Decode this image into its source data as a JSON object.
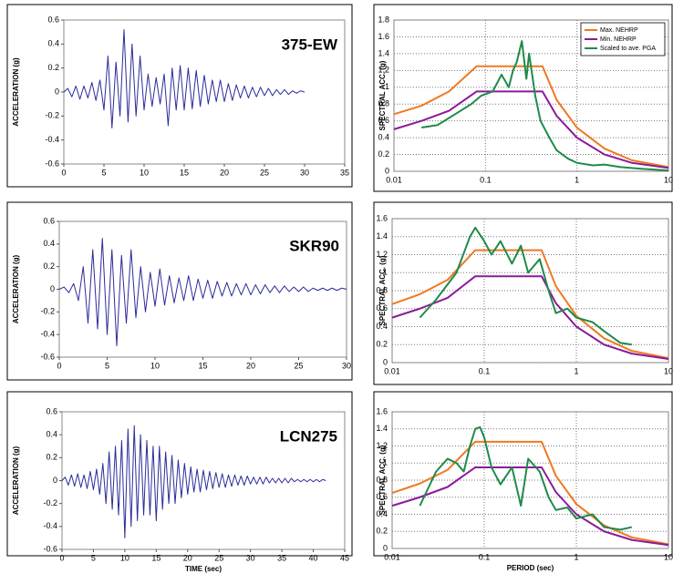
{
  "chart_data": [
    {
      "type": "line",
      "title": "375-EW",
      "ylabel": "ACCELERATION (g)",
      "xlim": [
        0,
        35
      ],
      "xticks": [
        0,
        5,
        10,
        15,
        20,
        25,
        30,
        35
      ],
      "ylim": [
        -0.6,
        0.6
      ],
      "yticks": [
        -0.6,
        -0.4,
        -0.2,
        0,
        0.2,
        0.4,
        0.6
      ],
      "grid": false,
      "series": [
        {
          "color": "#2b2b9a",
          "x": [
            0,
            0.5,
            1,
            1.5,
            2,
            2.5,
            3,
            3.5,
            4,
            4.5,
            5,
            5.5,
            6,
            6.5,
            7,
            7.5,
            8,
            8.5,
            9,
            9.5,
            10,
            10.5,
            11,
            11.5,
            12,
            12.5,
            13,
            13.5,
            14,
            14.5,
            15,
            15.5,
            16,
            16.5,
            17,
            17.5,
            18,
            18.5,
            19,
            19.5,
            20,
            20.5,
            21,
            21.5,
            22,
            22.5,
            23,
            23.5,
            24,
            24.5,
            25,
            25.5,
            26,
            26.5,
            27,
            27.5,
            28,
            28.5,
            29,
            29.5,
            30
          ],
          "values": [
            0,
            0.03,
            -0.04,
            0.05,
            -0.06,
            0.05,
            -0.05,
            0.08,
            -0.07,
            0.1,
            -0.15,
            0.3,
            -0.3,
            0.25,
            -0.2,
            0.52,
            -0.25,
            0.4,
            -0.2,
            0.3,
            -0.15,
            0.15,
            -0.12,
            0.12,
            -0.1,
            0.15,
            -0.28,
            0.2,
            -0.15,
            0.22,
            -0.15,
            0.2,
            -0.14,
            0.18,
            -0.12,
            0.14,
            -0.1,
            0.1,
            -0.08,
            0.1,
            -0.08,
            0.07,
            -0.07,
            0.06,
            -0.05,
            0.05,
            -0.05,
            0.04,
            -0.04,
            0.04,
            -0.03,
            0.03,
            -0.03,
            0.02,
            -0.02,
            0.02,
            -0.02,
            0.01,
            -0.01,
            0.01,
            0
          ]
        }
      ]
    },
    {
      "type": "line",
      "ylabel": "SPECTRAL ACC. (g)",
      "xlog": true,
      "xlim": [
        0.01,
        10
      ],
      "xticks": [
        0.01,
        0.1,
        1,
        10
      ],
      "ylim": [
        0,
        1.8
      ],
      "yticks": [
        0,
        0.2,
        0.4,
        0.6,
        0.8,
        1,
        1.2,
        1.4,
        1.6,
        1.8
      ],
      "grid": true,
      "legend": "upper right",
      "series": [
        {
          "name": "Max. NEHRP",
          "color": "#f07820",
          "x": [
            0.01,
            0.02,
            0.04,
            0.08,
            0.42,
            0.6,
            1,
            2,
            4,
            10
          ],
          "values": [
            0.68,
            0.78,
            0.95,
            1.25,
            1.25,
            0.85,
            0.52,
            0.27,
            0.13,
            0.05
          ]
        },
        {
          "name": "Min. NEHRP",
          "color": "#8a1a9a",
          "x": [
            0.01,
            0.02,
            0.04,
            0.08,
            0.42,
            0.6,
            1,
            2,
            4,
            10
          ],
          "values": [
            0.5,
            0.6,
            0.72,
            0.95,
            0.95,
            0.66,
            0.4,
            0.2,
            0.1,
            0.04
          ]
        },
        {
          "name": "Scaled to ave. PGA",
          "color": "#1f8a4a",
          "x": [
            0.02,
            0.03,
            0.05,
            0.07,
            0.09,
            0.12,
            0.15,
            0.18,
            0.2,
            0.22,
            0.25,
            0.28,
            0.3,
            0.35,
            0.4,
            0.5,
            0.6,
            0.8,
            1,
            1.5,
            2,
            3,
            5,
            10
          ],
          "values": [
            0.52,
            0.55,
            0.7,
            0.8,
            0.9,
            0.95,
            1.15,
            1.0,
            1.2,
            1.3,
            1.55,
            1.1,
            1.4,
            0.9,
            0.6,
            0.4,
            0.25,
            0.15,
            0.1,
            0.07,
            0.08,
            0.05,
            0.03,
            0.01
          ]
        }
      ]
    },
    {
      "type": "line",
      "title": "SKR90",
      "ylabel": "ACCELERATION (g)",
      "xlim": [
        0,
        30
      ],
      "xticks": [
        0,
        5,
        10,
        15,
        20,
        25,
        30
      ],
      "ylim": [
        -0.6,
        0.6
      ],
      "yticks": [
        -0.6,
        -0.4,
        -0.2,
        0,
        0.2,
        0.4,
        0.6
      ],
      "grid": false,
      "series": [
        {
          "color": "#2b2b9a",
          "x": [
            0,
            0.5,
            1,
            1.5,
            2,
            2.5,
            3,
            3.5,
            4,
            4.5,
            5,
            5.5,
            6,
            6.5,
            7,
            7.5,
            8,
            8.5,
            9,
            9.5,
            10,
            10.5,
            11,
            11.5,
            12,
            12.5,
            13,
            13.5,
            14,
            14.5,
            15,
            15.5,
            16,
            16.5,
            17,
            17.5,
            18,
            18.5,
            19,
            19.5,
            20,
            20.5,
            21,
            21.5,
            22,
            22.5,
            23,
            23.5,
            24,
            24.5,
            25,
            25.5,
            26,
            26.5,
            27,
            27.5,
            28,
            28.5,
            29,
            29.5,
            30
          ],
          "values": [
            0,
            0.02,
            -0.03,
            0.05,
            -0.1,
            0.2,
            -0.3,
            0.35,
            -0.35,
            0.45,
            -0.4,
            0.35,
            -0.5,
            0.3,
            -0.3,
            0.35,
            -0.25,
            0.2,
            -0.2,
            0.15,
            -0.15,
            0.18,
            -0.14,
            0.12,
            -0.12,
            0.1,
            -0.1,
            0.12,
            -0.1,
            0.09,
            -0.08,
            0.08,
            -0.08,
            0.07,
            -0.06,
            0.06,
            -0.06,
            0.05,
            -0.05,
            0.05,
            -0.05,
            0.04,
            -0.04,
            0.04,
            -0.03,
            0.03,
            -0.03,
            0.03,
            -0.02,
            0.02,
            -0.02,
            0.02,
            -0.02,
            0.01,
            -0.01,
            0.01,
            -0.01,
            0.01,
            -0.01,
            0.01,
            0
          ]
        }
      ]
    },
    {
      "type": "line",
      "ylabel": "SPECTRAL ACC. (g)",
      "xlog": true,
      "xlim": [
        0.01,
        10
      ],
      "xticks": [
        0.01,
        0.1,
        1,
        10
      ],
      "ylim": [
        0,
        1.6
      ],
      "yticks": [
        0,
        0.2,
        0.4,
        0.6,
        0.8,
        1,
        1.2,
        1.4,
        1.6
      ],
      "grid": true,
      "series": [
        {
          "color": "#f07820",
          "x": [
            0.01,
            0.02,
            0.04,
            0.08,
            0.42,
            0.6,
            1,
            2,
            4,
            10
          ],
          "values": [
            0.65,
            0.76,
            0.92,
            1.25,
            1.25,
            0.85,
            0.52,
            0.27,
            0.13,
            0.05
          ]
        },
        {
          "color": "#8a1a9a",
          "x": [
            0.01,
            0.02,
            0.04,
            0.08,
            0.42,
            0.6,
            1,
            2,
            4,
            10
          ],
          "values": [
            0.5,
            0.6,
            0.72,
            0.96,
            0.96,
            0.66,
            0.4,
            0.2,
            0.1,
            0.04
          ]
        },
        {
          "color": "#1f8a4a",
          "x": [
            0.02,
            0.03,
            0.05,
            0.07,
            0.08,
            0.1,
            0.12,
            0.15,
            0.2,
            0.25,
            0.3,
            0.4,
            0.5,
            0.6,
            0.8,
            1,
            1.5,
            2,
            3,
            4
          ],
          "values": [
            0.5,
            0.7,
            1.0,
            1.4,
            1.5,
            1.35,
            1.2,
            1.35,
            1.1,
            1.3,
            1.0,
            1.15,
            0.8,
            0.55,
            0.6,
            0.5,
            0.45,
            0.35,
            0.22,
            0.2
          ]
        }
      ]
    },
    {
      "type": "line",
      "title": "LCN275",
      "ylabel": "ACCELERATION (g)",
      "xlabel": "TIME (sec)",
      "xlim": [
        0,
        45
      ],
      "xticks": [
        0,
        5,
        10,
        15,
        20,
        25,
        30,
        35,
        40,
        45
      ],
      "ylim": [
        -0.6,
        0.6
      ],
      "yticks": [
        -0.6,
        -0.4,
        -0.2,
        0,
        0.2,
        0.4,
        0.6
      ],
      "grid": false,
      "series": [
        {
          "color": "#2b2b9a",
          "x": [
            0,
            0.5,
            1,
            1.5,
            2,
            2.5,
            3,
            3.5,
            4,
            4.5,
            5,
            5.5,
            6,
            6.5,
            7,
            7.5,
            8,
            8.5,
            9,
            9.5,
            10,
            10.5,
            11,
            11.5,
            12,
            12.5,
            13,
            13.5,
            14,
            14.5,
            15,
            15.5,
            16,
            16.5,
            17,
            17.5,
            18,
            18.5,
            19,
            19.5,
            20,
            20.5,
            21,
            21.5,
            22,
            22.5,
            23,
            23.5,
            24,
            24.5,
            25,
            25.5,
            26,
            26.5,
            27,
            27.5,
            28,
            28.5,
            29,
            29.5,
            30,
            30.5,
            31,
            31.5,
            32,
            32.5,
            33,
            33.5,
            34,
            34.5,
            35,
            35.5,
            36,
            36.5,
            37,
            37.5,
            38,
            38.5,
            39,
            39.5,
            40,
            40.5,
            41,
            41.5,
            42
          ],
          "values": [
            0,
            0.03,
            -0.04,
            0.05,
            -0.05,
            0.06,
            -0.06,
            0.05,
            -0.07,
            0.08,
            -0.08,
            0.1,
            -0.12,
            0.15,
            -0.2,
            0.25,
            -0.25,
            0.3,
            -0.3,
            0.35,
            -0.5,
            0.45,
            -0.4,
            0.48,
            -0.35,
            0.4,
            -0.3,
            0.35,
            -0.3,
            0.3,
            -0.35,
            0.3,
            -0.25,
            0.25,
            -0.2,
            0.22,
            -0.2,
            0.18,
            -0.15,
            0.15,
            -0.12,
            0.12,
            -0.1,
            0.1,
            -0.1,
            0.09,
            -0.08,
            0.08,
            -0.07,
            0.07,
            -0.06,
            0.06,
            -0.06,
            0.05,
            -0.05,
            0.05,
            -0.04,
            0.04,
            -0.04,
            0.04,
            -0.03,
            0.03,
            -0.03,
            0.03,
            -0.03,
            0.03,
            -0.02,
            0.02,
            -0.02,
            0.02,
            -0.02,
            0.02,
            -0.02,
            0.02,
            -0.01,
            0.01,
            -0.01,
            0.01,
            -0.01,
            0.01,
            -0.01,
            0.01,
            -0.01,
            0.01,
            0
          ]
        }
      ]
    },
    {
      "type": "line",
      "ylabel": "SPECTRAL ACC. (g)",
      "xlabel": "PERIOD (sec)",
      "xlog": true,
      "xlim": [
        0.01,
        10
      ],
      "xticks": [
        0.01,
        0.1,
        1,
        10
      ],
      "ylim": [
        0,
        1.6
      ],
      "yticks": [
        0,
        0.2,
        0.4,
        0.6,
        0.8,
        1,
        1.2,
        1.4,
        1.6
      ],
      "grid": true,
      "series": [
        {
          "color": "#f07820",
          "x": [
            0.01,
            0.02,
            0.04,
            0.08,
            0.42,
            0.6,
            1,
            2,
            4,
            10
          ],
          "values": [
            0.65,
            0.76,
            0.92,
            1.25,
            1.25,
            0.85,
            0.52,
            0.27,
            0.13,
            0.05
          ]
        },
        {
          "color": "#8a1a9a",
          "x": [
            0.01,
            0.02,
            0.04,
            0.08,
            0.42,
            0.6,
            1,
            2,
            4,
            10
          ],
          "values": [
            0.5,
            0.6,
            0.72,
            0.95,
            0.95,
            0.66,
            0.4,
            0.2,
            0.1,
            0.04
          ]
        },
        {
          "color": "#1f8a4a",
          "x": [
            0.02,
            0.03,
            0.04,
            0.05,
            0.06,
            0.07,
            0.08,
            0.09,
            0.1,
            0.12,
            0.15,
            0.2,
            0.25,
            0.3,
            0.4,
            0.5,
            0.6,
            0.8,
            1,
            1.5,
            2,
            3,
            4
          ],
          "values": [
            0.5,
            0.9,
            1.05,
            1.0,
            0.9,
            1.2,
            1.4,
            1.42,
            1.3,
            0.95,
            0.75,
            0.95,
            0.5,
            1.05,
            0.9,
            0.6,
            0.45,
            0.48,
            0.35,
            0.4,
            0.25,
            0.22,
            0.25
          ]
        }
      ]
    }
  ]
}
